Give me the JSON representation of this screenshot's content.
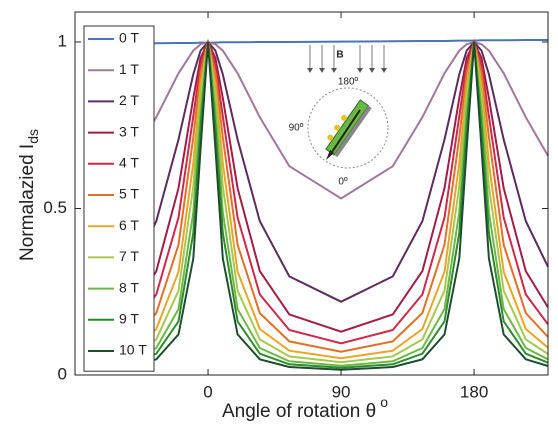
{
  "chart_data": {
    "type": "line",
    "xlabel": "Angle of rotation θ",
    "xlabel_sup": "o",
    "ylabel": "Normalazied I",
    "ylabel_sub": "ds",
    "xlim": [
      -90,
      230
    ],
    "ylim": [
      0,
      1.09
    ],
    "xticks": [
      0,
      90,
      180
    ],
    "yticks": [
      0,
      0.5,
      1
    ],
    "legend": "upper left",
    "annotations": [
      "B",
      "180º",
      "90º",
      "0º"
    ],
    "x": [
      -50,
      -35,
      -20,
      -10,
      -5,
      0,
      5,
      10,
      20,
      35,
      55,
      90,
      125,
      145,
      160,
      170,
      175,
      180,
      185,
      190,
      200,
      215,
      230
    ],
    "series": [
      {
        "name": "0 T",
        "color": "#4a74b4",
        "values": [
          0.996,
          0.996,
          0.997,
          0.997,
          0.998,
          0.998,
          0.998,
          0.999,
          0.999,
          1.0,
          1.0,
          1.001,
          1.002,
          1.003,
          1.003,
          1.004,
          1.004,
          1.004,
          1.005,
          1.005,
          1.005,
          1.006,
          1.006
        ]
      },
      {
        "name": "1 T",
        "color": "#a07898",
        "values": [
          0.658,
          0.774,
          0.906,
          0.974,
          0.993,
          1,
          0.993,
          0.974,
          0.906,
          0.774,
          0.627,
          0.53,
          0.627,
          0.774,
          0.906,
          0.974,
          0.993,
          1,
          0.993,
          0.974,
          0.906,
          0.774,
          0.658
        ]
      },
      {
        "name": "2 T",
        "color": "#5a2d5a",
        "values": [
          0.325,
          0.462,
          0.707,
          0.903,
          0.974,
          1,
          0.974,
          0.903,
          0.707,
          0.462,
          0.296,
          0.22,
          0.296,
          0.462,
          0.707,
          0.903,
          0.974,
          1,
          0.974,
          0.903,
          0.707,
          0.462,
          0.325
        ]
      },
      {
        "name": "3 T",
        "color": "#a01e45",
        "values": [
          0.203,
          0.312,
          0.561,
          0.832,
          0.952,
          1,
          0.952,
          0.832,
          0.561,
          0.312,
          0.182,
          0.13,
          0.182,
          0.312,
          0.561,
          0.832,
          0.952,
          1,
          0.952,
          0.832,
          0.561,
          0.312,
          0.203
        ]
      },
      {
        "name": "4 T",
        "color": "#cc2a4c",
        "values": [
          0.152,
          0.242,
          0.473,
          0.777,
          0.932,
          1,
          0.932,
          0.777,
          0.473,
          0.242,
          0.135,
          0.095,
          0.135,
          0.242,
          0.473,
          0.777,
          0.932,
          1,
          0.932,
          0.777,
          0.473,
          0.242,
          0.152
        ]
      },
      {
        "name": "5 T",
        "color": "#e0702a",
        "values": [
          0.114,
          0.186,
          0.391,
          0.714,
          0.908,
          1,
          0.908,
          0.714,
          0.391,
          0.186,
          0.101,
          0.07,
          0.101,
          0.186,
          0.391,
          0.714,
          0.908,
          1,
          0.908,
          0.714,
          0.391,
          0.186,
          0.114
        ]
      },
      {
        "name": "6 T",
        "color": "#e8a528",
        "values": [
          0.082,
          0.138,
          0.31,
          0.636,
          0.874,
          1,
          0.874,
          0.636,
          0.31,
          0.138,
          0.073,
          0.05,
          0.073,
          0.138,
          0.31,
          0.636,
          0.874,
          1,
          0.874,
          0.636,
          0.31,
          0.138,
          0.082
        ]
      },
      {
        "name": "7 T",
        "color": "#a8c850",
        "values": [
          0.063,
          0.107,
          0.253,
          0.567,
          0.839,
          1,
          0.839,
          0.567,
          0.253,
          0.107,
          0.056,
          0.038,
          0.056,
          0.107,
          0.253,
          0.567,
          0.839,
          1,
          0.839,
          0.567,
          0.253,
          0.107,
          0.063
        ]
      },
      {
        "name": "8 T",
        "color": "#6cb844",
        "values": [
          0.047,
          0.081,
          0.198,
          0.489,
          0.791,
          1,
          0.791,
          0.489,
          0.198,
          0.081,
          0.041,
          0.028,
          0.041,
          0.081,
          0.198,
          0.489,
          0.791,
          1,
          0.791,
          0.489,
          0.198,
          0.081,
          0.047
        ]
      },
      {
        "name": "9 T",
        "color": "#2e8b2e",
        "values": [
          0.037,
          0.064,
          0.161,
          0.427,
          0.747,
          1,
          0.747,
          0.427,
          0.161,
          0.064,
          0.032,
          0.022,
          0.032,
          0.064,
          0.161,
          0.427,
          0.747,
          1,
          0.747,
          0.427,
          0.161,
          0.064,
          0.037
        ]
      },
      {
        "name": "10 T",
        "color": "#1e4d2e",
        "values": [
          0.027,
          0.047,
          0.122,
          0.35,
          0.681,
          1,
          0.681,
          0.35,
          0.122,
          0.047,
          0.024,
          0.016,
          0.024,
          0.047,
          0.122,
          0.35,
          0.681,
          1,
          0.681,
          0.35,
          0.122,
          0.047,
          0.027
        ]
      }
    ]
  }
}
